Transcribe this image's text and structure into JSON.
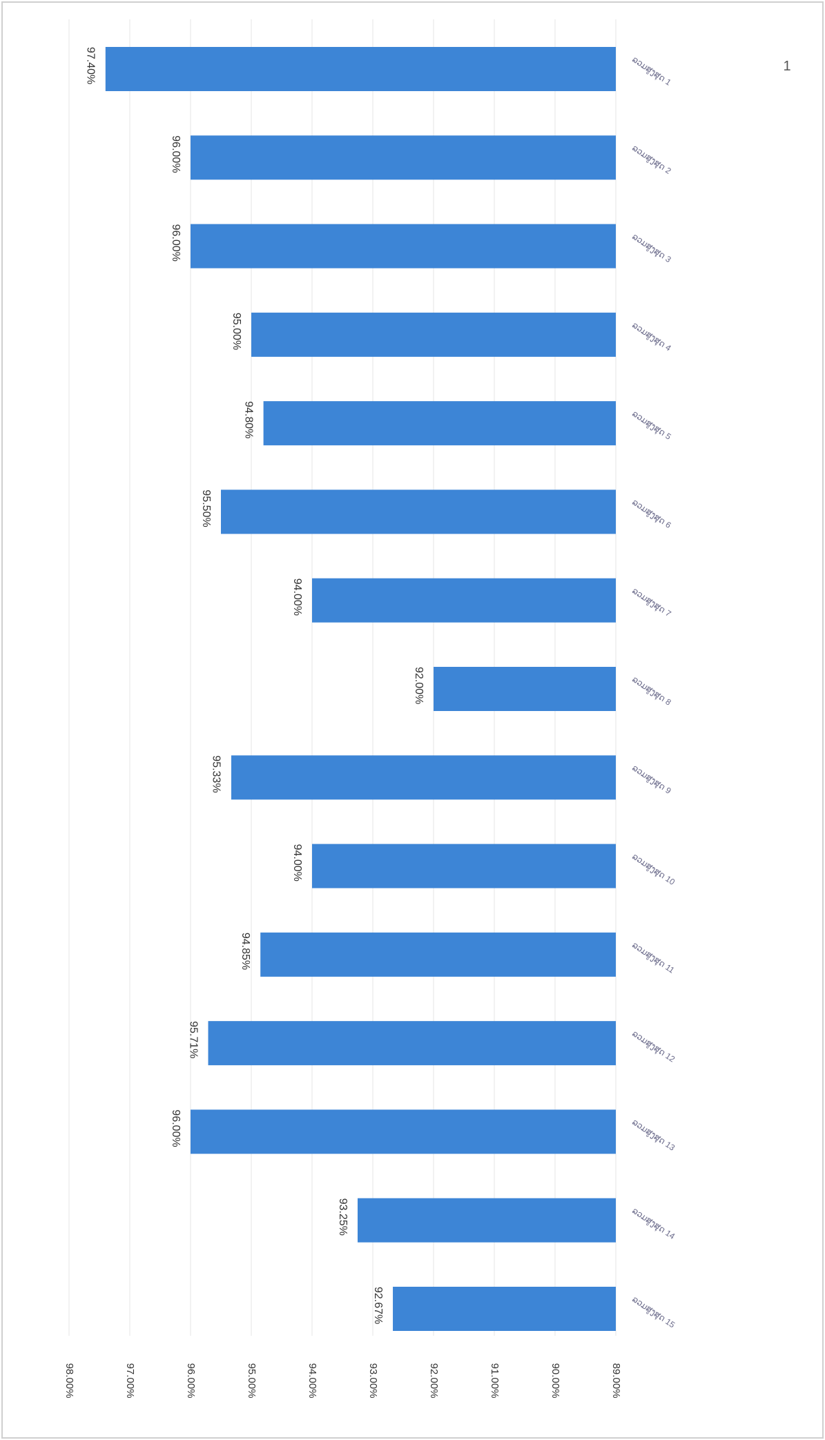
{
  "page_number": "1",
  "chart_data": {
    "type": "bar",
    "orientation": "horizontal, page rotated 90 degrees",
    "title": "",
    "xlabel": "",
    "ylabel": "",
    "categories": [
      "ລວມສູງສຸດ 1",
      "ລວມສູງສຸດ 2",
      "ລວມສູງສຸດ 3",
      "ລວມສູງສຸດ 4",
      "ລວມສູງສຸດ 5",
      "ລວມສູງສຸດ 6",
      "ລວມສູງສຸດ 7",
      "ລວມສູງສຸດ 8",
      "ລວມສູງສຸດ 9",
      "ລວມສູງສຸດ 10",
      "ລວມສູງສຸດ 11",
      "ລວມສູງສຸດ 12",
      "ລວມສູງສຸດ 13",
      "ລວມສູງສຸດ 14",
      "ລວມສູງສຸດ 15"
    ],
    "values": [
      97.4,
      96.0,
      96.0,
      95.0,
      94.8,
      95.5,
      94.0,
      92.0,
      95.33,
      94.0,
      94.85,
      95.71,
      96.0,
      93.25,
      92.67
    ],
    "data_labels": [
      "97.40%",
      "96.00%",
      "96.00%",
      "95.00%",
      "94.80%",
      "95.50%",
      "94.00%",
      "92.00%",
      "95.33%",
      "94.00%",
      "94.85%",
      "95.71%",
      "96.00%",
      "93.25%",
      "92.67%"
    ],
    "value_axis": {
      "range": [
        89,
        98
      ],
      "ticks": [
        98,
        97,
        96,
        95,
        94,
        93,
        92,
        91,
        90,
        89
      ],
      "tick_labels": [
        "98.00%",
        "97.00%",
        "96.00%",
        "95.00%",
        "94.00%",
        "93.00%",
        "92.00%",
        "91.00%",
        "90.00%",
        "89.00%"
      ]
    },
    "grid": true,
    "legend": "none",
    "colors": {
      "bar": "#3d85d6",
      "grid": "#e6e6e6",
      "frame": "#cfcfcf"
    }
  }
}
